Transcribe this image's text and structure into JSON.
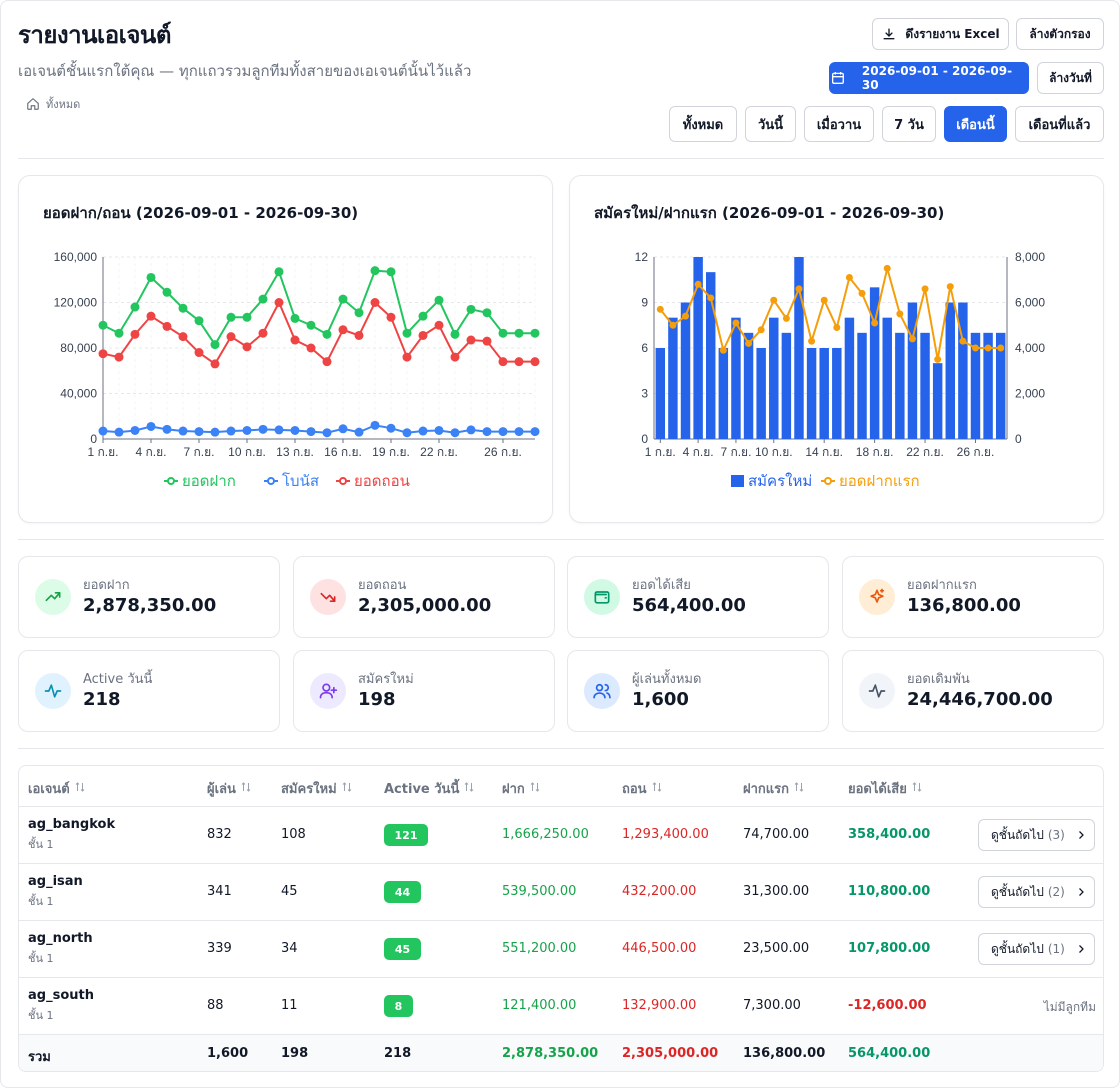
{
  "header": {
    "title": "รายงานเอเจนต์",
    "subtitle": "เอเจนต์ชั้นแรกใต้คุณ — ทุกแถวรวมลูกทีมทั้งสายของเอเจนต์นั้นไว้แล้ว",
    "breadcrumb": "ทั้งหมด",
    "export_label": "ดึงรายงาน Excel",
    "clear_filter_label": "ล้างตัวกรอง",
    "date_range": "2026-09-01 - 2026-09-30",
    "clear_date_label": "ล้างวันที่"
  },
  "range_tabs": [
    {
      "label": "ทั้งหมด",
      "active": false
    },
    {
      "label": "วันนี้",
      "active": false
    },
    {
      "label": "เมื่อวาน",
      "active": false
    },
    {
      "label": "7 วัน",
      "active": false
    },
    {
      "label": "เดือนนี้",
      "active": true
    },
    {
      "label": "เดือนที่แล้ว",
      "active": false
    }
  ],
  "charts": {
    "left_title": "ยอดฝาก/ถอน (2026-09-01 - 2026-09-30)",
    "right_title": "สมัครใหม่/ฝากแรก (2026-09-01 - 2026-09-30)"
  },
  "chart_data": [
    {
      "type": "line",
      "title": "ยอดฝาก/ถอน (2026-09-01 - 2026-09-30)",
      "x": [
        1,
        2,
        3,
        4,
        5,
        6,
        7,
        8,
        9,
        10,
        11,
        12,
        13,
        14,
        15,
        16,
        17,
        18,
        19,
        20,
        21,
        22,
        23,
        24,
        25,
        26,
        27,
        28
      ],
      "x_tick_labels": [
        "1 ก.ย.",
        "4 ก.ย.",
        "7 ก.ย.",
        "10 ก.ย.",
        "13 ก.ย.",
        "16 ก.ย.",
        "19 ก.ย.",
        "22 ก.ย.",
        "26 ก.ย."
      ],
      "x_tick_values": [
        1,
        4,
        7,
        10,
        13,
        16,
        19,
        22,
        26
      ],
      "y_ticks": [
        "0",
        "40,000",
        "80,000",
        "120,000",
        "160,000"
      ],
      "ylim": [
        0,
        160000
      ],
      "grid": true,
      "legend": "bottom",
      "series": [
        {
          "name": "ยอดฝาก",
          "color": "#22c55e",
          "values": [
            100000,
            93000,
            116000,
            142000,
            129000,
            115000,
            104000,
            83000,
            107000,
            107000,
            123000,
            147000,
            106000,
            100000,
            92000,
            123000,
            111000,
            148000,
            147000,
            93000,
            108000,
            122000,
            92000,
            114000,
            111000,
            93000,
            93000,
            93000
          ]
        },
        {
          "name": "โบนัส",
          "color": "#3b82f6",
          "values": [
            7000,
            6000,
            7500,
            11000,
            8500,
            7000,
            6500,
            6000,
            7000,
            7500,
            8500,
            8000,
            7500,
            6500,
            5500,
            9000,
            6000,
            12000,
            9500,
            5500,
            7000,
            7500,
            5500,
            8000,
            6500,
            6500,
            6500,
            6500
          ]
        },
        {
          "name": "ยอดถอน",
          "color": "#ef4444",
          "values": [
            75000,
            72000,
            92000,
            108000,
            99000,
            90000,
            76000,
            66000,
            90000,
            81000,
            93000,
            120000,
            87000,
            80000,
            68000,
            96000,
            91000,
            120000,
            107000,
            72000,
            91000,
            100000,
            72000,
            87000,
            86000,
            68000,
            68000,
            68000
          ]
        }
      ]
    },
    {
      "type": "bar",
      "title": "สมัครใหม่/ฝากแรก (2026-09-01 - 2026-09-30)",
      "x": [
        1,
        2,
        3,
        4,
        5,
        6,
        7,
        8,
        9,
        10,
        11,
        12,
        13,
        14,
        15,
        16,
        17,
        18,
        19,
        20,
        21,
        22,
        23,
        24,
        25,
        26,
        27,
        28
      ],
      "x_tick_labels": [
        "1 ก.ย.",
        "4 ก.ย.",
        "7 ก.ย.",
        "10 ก.ย.",
        "14 ก.ย.",
        "18 ก.ย.",
        "22 ก.ย.",
        "26 ก.ย."
      ],
      "x_tick_values": [
        1,
        4,
        7,
        10,
        14,
        18,
        22,
        26
      ],
      "y_left_ticks": [
        "0",
        "3",
        "6",
        "9",
        "12"
      ],
      "y_right_ticks": [
        "0",
        "2,000",
        "4,000",
        "6,000",
        "8,000"
      ],
      "ylim_left": [
        0,
        12
      ],
      "ylim_right": [
        0,
        8000
      ],
      "legend": "bottom",
      "series": [
        {
          "name": "สมัครใหม่",
          "color": "#2563eb",
          "axis": "left",
          "kind": "bar",
          "values": [
            6,
            8,
            9,
            12,
            11,
            6,
            8,
            7,
            6,
            8,
            7,
            12,
            6,
            6,
            6,
            8,
            7,
            10,
            8,
            7,
            9,
            7,
            5,
            9,
            9,
            7,
            7,
            7
          ]
        },
        {
          "name": "ยอดฝากแรก",
          "color": "#f59e0b",
          "axis": "right",
          "kind": "line",
          "values": [
            5700,
            5000,
            5400,
            6800,
            6200,
            3900,
            5100,
            4200,
            4800,
            6100,
            5300,
            6600,
            4300,
            6100,
            4900,
            7100,
            6400,
            5100,
            7500,
            5500,
            4400,
            6600,
            3500,
            6700,
            4300,
            4000,
            4000,
            4000
          ]
        }
      ]
    }
  ],
  "kpis": [
    {
      "label": "ยอดฝาก",
      "value": "2,878,350.00",
      "icon": "trending-up-icon",
      "bg": "#dcfce7",
      "fg": "#16a34a"
    },
    {
      "label": "ยอดถอน",
      "value": "2,305,000.00",
      "icon": "trending-down-icon",
      "bg": "#fee2e2",
      "fg": "#dc2626"
    },
    {
      "label": "ยอดได้เสีย",
      "value": "564,400.00",
      "icon": "wallet-icon",
      "bg": "#d1fae5",
      "fg": "#059669"
    },
    {
      "label": "ยอดฝากแรก",
      "value": "136,800.00",
      "icon": "sparkles-icon",
      "bg": "#ffedd5",
      "fg": "#ea580c"
    },
    {
      "label": "Active วันนี้",
      "value": "218",
      "icon": "activity-icon",
      "bg": "#e0f2fe",
      "fg": "#0891b2"
    },
    {
      "label": "สมัครใหม่",
      "value": "198",
      "icon": "user-plus-icon",
      "bg": "#ede9fe",
      "fg": "#7c3aed"
    },
    {
      "label": "ผู้เล่นทั้งหมด",
      "value": "1,600",
      "icon": "users-icon",
      "bg": "#dbeafe",
      "fg": "#2563eb"
    },
    {
      "label": "ยอดเดิมพัน",
      "value": "24,446,700.00",
      "icon": "pulse-icon",
      "bg": "#f1f5f9",
      "fg": "#475569"
    }
  ],
  "table": {
    "headers": [
      "เอเจนต์",
      "ผู้เล่น",
      "สมัครใหม่",
      "Active วันนี้",
      "ฝาก",
      "ถอน",
      "ฝากแรก",
      "ยอดได้เสีย"
    ],
    "drill_label": "ดูชั้นถัดไป",
    "rows": [
      {
        "agent": "ag_bangkok",
        "tier": "ชั้น 1",
        "players": "832",
        "new": "108",
        "active": "121",
        "deposit": "1,666,250.00",
        "withdraw": "1,293,400.00",
        "first": "74,700.00",
        "pnl": "358,400.00",
        "children": "(3)"
      },
      {
        "agent": "ag_isan",
        "tier": "ชั้น 1",
        "players": "341",
        "new": "45",
        "active": "44",
        "deposit": "539,500.00",
        "withdraw": "432,200.00",
        "first": "31,300.00",
        "pnl": "110,800.00",
        "children": "(2)"
      },
      {
        "agent": "ag_north",
        "tier": "ชั้น 1",
        "players": "339",
        "new": "34",
        "active": "45",
        "deposit": "551,200.00",
        "withdraw": "446,500.00",
        "first": "23,500.00",
        "pnl": "107,800.00",
        "children": "(1)"
      },
      {
        "agent": "ag_south",
        "tier": "ชั้น 1",
        "players": "88",
        "new": "11",
        "active": "8",
        "deposit": "121,400.00",
        "withdraw": "132,900.00",
        "first": "7,300.00",
        "pnl": "-12,600.00",
        "no_children": "ไม่มีลูกทีม"
      }
    ],
    "total": {
      "label": "รวม",
      "players": "1,600",
      "new": "198",
      "active": "218",
      "deposit": "2,878,350.00",
      "withdraw": "2,305,000.00",
      "first": "136,800.00",
      "pnl": "564,400.00"
    }
  }
}
